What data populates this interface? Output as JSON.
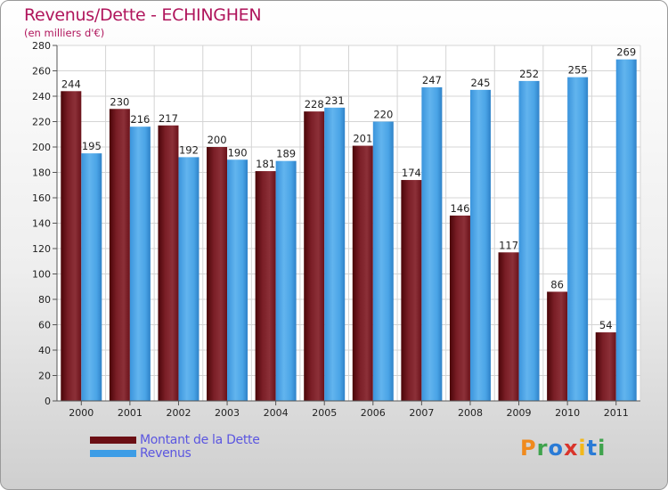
{
  "header": {
    "title": "Revenus/Dette - ECHINGHEN",
    "subtitle": "(en milliers d'€)"
  },
  "colors": {
    "title": "#b0155c",
    "dette": "#7a1e26",
    "revenus": "#3d9de6",
    "legend_text": "#5b56e0"
  },
  "legend": {
    "items": [
      {
        "label": "Montant de la Dette",
        "color": "#6b0f14"
      },
      {
        "label": "Revenus",
        "color": "#3d9de6"
      }
    ]
  },
  "logo": {
    "text": "Proxiti",
    "letters": [
      {
        "ch": "P",
        "color": "#f08a1d"
      },
      {
        "ch": "r",
        "color": "#3fa34d"
      },
      {
        "ch": "o",
        "color": "#2a7bd6"
      },
      {
        "ch": "x",
        "color": "#d9342b"
      },
      {
        "ch": "i",
        "color": "#f2b81a"
      },
      {
        "ch": "t",
        "color": "#2a7bd6"
      },
      {
        "ch": "i",
        "color": "#3fa34d"
      }
    ]
  },
  "chart_data": {
    "type": "bar",
    "title": "Revenus/Dette - ECHINGHEN",
    "subtitle": "(en milliers d'€)",
    "categories": [
      "2000",
      "2001",
      "2002",
      "2003",
      "2004",
      "2005",
      "2006",
      "2007",
      "2008",
      "2009",
      "2010",
      "2011"
    ],
    "series": [
      {
        "name": "Montant de la Dette",
        "values": [
          244,
          230,
          217,
          200,
          181,
          228,
          201,
          174,
          146,
          117,
          86,
          54
        ]
      },
      {
        "name": "Revenus",
        "values": [
          195,
          216,
          192,
          190,
          189,
          231,
          220,
          247,
          245,
          252,
          255,
          269
        ]
      }
    ],
    "ylim": [
      0,
      280
    ],
    "yticks": [
      0,
      20,
      40,
      60,
      80,
      100,
      120,
      140,
      160,
      180,
      200,
      220,
      240,
      260,
      280
    ],
    "grid": true,
    "legend_position": "bottom-left"
  }
}
